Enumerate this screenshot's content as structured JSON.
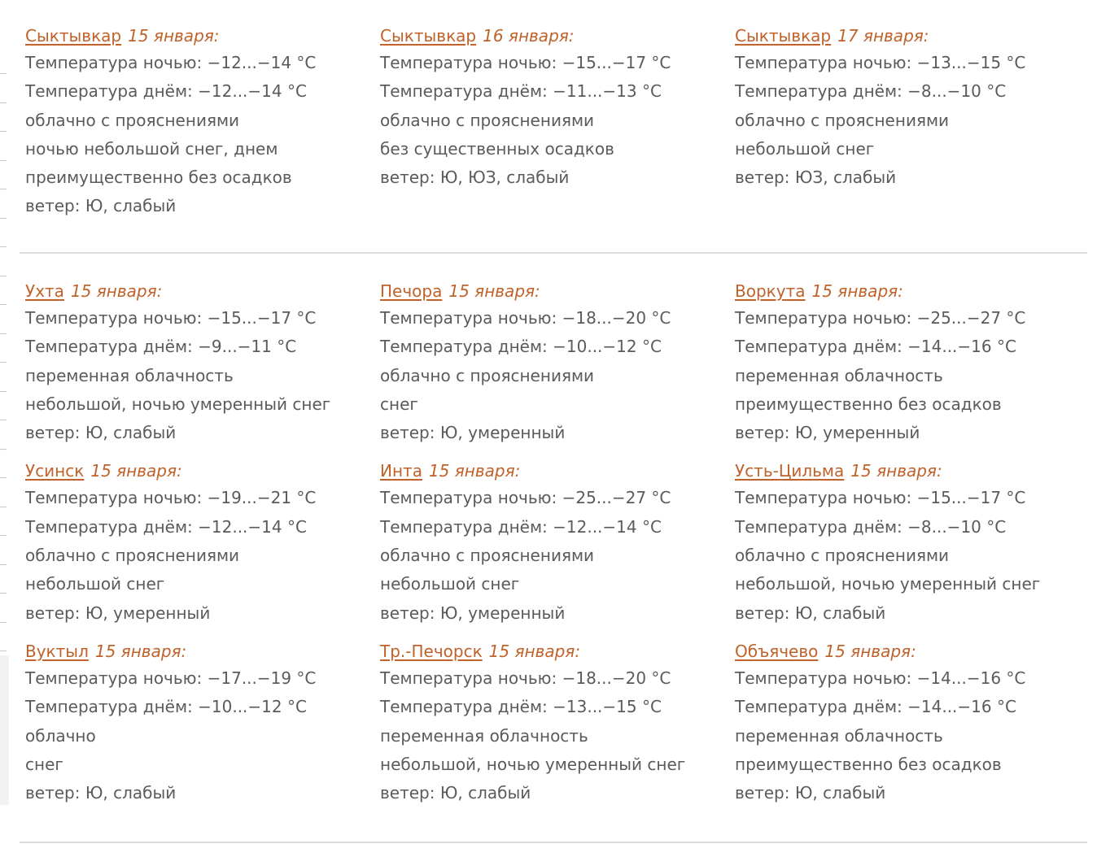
{
  "colors": {
    "link": "#c0622a",
    "text": "#5b5b5b",
    "divider": "#dcdcdc"
  },
  "sections": [
    {
      "blocks": [
        {
          "city": "Сыктывкар",
          "date": "15 января:",
          "night": "Температура ночью: −12...−14 °C",
          "day": "Температура днём: −12...−14 °C",
          "sky": "облачно с прояснениями",
          "precip": "ночью небольшой снег, днем преимущественно без осадков",
          "wind": "ветер: Ю, слабый"
        },
        {
          "city": "Сыктывкар",
          "date": "16 января:",
          "night": "Температура ночью: −15...−17 °C",
          "day": "Температура днём: −11...−13 °C",
          "sky": "облачно с прояснениями",
          "precip": "без существенных осадков",
          "wind": "ветер: Ю, ЮЗ, слабый"
        },
        {
          "city": "Сыктывкар",
          "date": "17 января:",
          "night": "Температура ночью: −13...−15 °C",
          "day": "Температура днём: −8...−10 °C",
          "sky": "облачно с прояснениями",
          "precip": "небольшой снег",
          "wind": "ветер: ЮЗ, слабый"
        }
      ]
    },
    {
      "blocks": [
        {
          "city": "Ухта",
          "date": "15 января:",
          "night": "Температура ночью: −15...−17 °C",
          "day": "Температура днём: −9...−11 °C",
          "sky": "переменная облачность",
          "precip": "небольшой, ночью умеренный снег",
          "wind": "ветер: Ю, слабый"
        },
        {
          "city": "Печора",
          "date": "15 января:",
          "night": "Температура ночью: −18...−20 °C",
          "day": "Температура днём: −10...−12 °C",
          "sky": "облачно с прояснениями",
          "precip": "снег",
          "wind": "ветер: Ю, умеренный"
        },
        {
          "city": "Воркута",
          "date": "15 января:",
          "night": "Температура ночью: −25...−27 °C",
          "day": "Температура днём: −14...−16 °C",
          "sky": "переменная облачность",
          "precip": "преимущественно без осадков",
          "wind": "ветер: Ю, умеренный"
        },
        {
          "city": "Усинск",
          "date": "15 января:",
          "night": "Температура ночью: −19...−21 °C",
          "day": "Температура днём: −12...−14 °C",
          "sky": "облачно с прояснениями",
          "precip": "небольшой снег",
          "wind": "ветер: Ю, умеренный"
        },
        {
          "city": "Инта",
          "date": "15 января:",
          "night": "Температура ночью: −25...−27 °C",
          "day": "Температура днём: −12...−14 °C",
          "sky": "облачно с прояснениями",
          "precip": "небольшой снег",
          "wind": "ветер: Ю, умеренный"
        },
        {
          "city": "Усть-Цильма",
          "date": "15 января:",
          "night": "Температура ночью: −15...−17 °C",
          "day": "Температура днём: −8...−10 °C",
          "sky": "облачно с прояснениями",
          "precip": "небольшой, ночью умеренный снег",
          "wind": "ветер: Ю, слабый"
        },
        {
          "city": "Вуктыл",
          "date": "15 января:",
          "night": "Температура ночью: −17...−19 °C",
          "day": "Температура днём: −10...−12 °C",
          "sky": "облачно",
          "precip": "снег",
          "wind": "ветер: Ю, слабый"
        },
        {
          "city": "Тр.-Печорск",
          "date": "15 января:",
          "night": "Температура ночью: −18...−20 °C",
          "day": "Температура днём: −13...−15 °C",
          "sky": "переменная облачность",
          "precip": "небольшой, ночью умеренный снег",
          "wind": "ветер: Ю, слабый"
        },
        {
          "city": "Объячево",
          "date": "15 января:",
          "night": "Температура ночью: −14...−16 °C",
          "day": "Температура днём: −14...−16 °C",
          "sky": "переменная облачность",
          "precip": "преимущественно без осадков",
          "wind": "ветер: Ю, слабый"
        }
      ]
    }
  ]
}
